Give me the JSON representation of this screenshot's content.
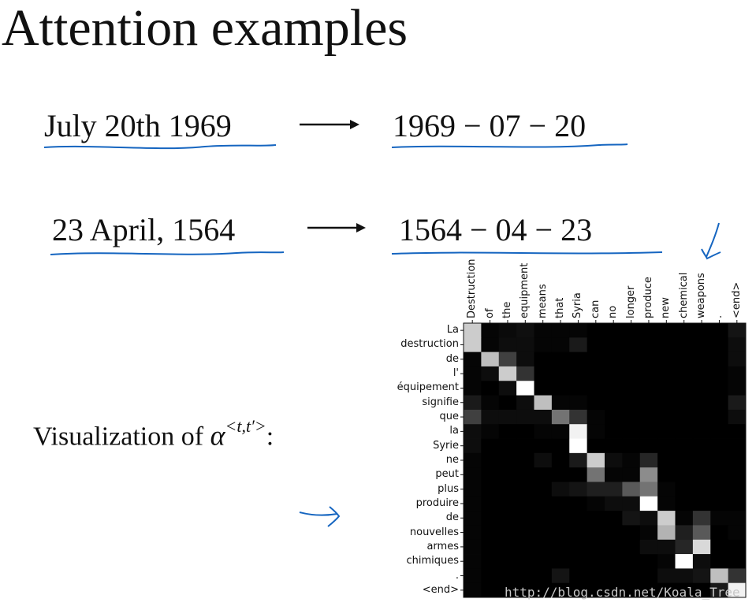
{
  "title": "Attention examples",
  "examples": [
    {
      "input": "July 20th 1969",
      "output": "1969 − 07 − 20"
    },
    {
      "input": "23 April, 1564",
      "output": "1564 − 04 − 23"
    }
  ],
  "visualization": {
    "prefix": "Visualization of ",
    "symbol": "α",
    "superscript": "<t,t′>",
    "suffix": ":"
  },
  "watermark": "http://blog.csdn.net/Koala_Tree",
  "colors": {
    "ink": "#111111",
    "pen": "#1565c0"
  },
  "chart_data": {
    "type": "heatmap",
    "x_labels": [
      "Destruction",
      "of",
      "the",
      "equipment",
      "means",
      "that",
      "Syria",
      "can",
      "no",
      "longer",
      "produce",
      "new",
      "chemical",
      "weapons",
      ".",
      "<end>"
    ],
    "y_labels": [
      "La",
      "destruction",
      "de",
      "l'",
      "équipement",
      "signifie",
      "que",
      "la",
      "Syrie",
      "ne",
      "peut",
      "plus",
      "produire",
      "de",
      "nouvelles",
      "armes",
      "chimiques",
      ".",
      "<end>"
    ],
    "colormap": "grayscale (black = 0, white = 1)",
    "values": [
      [
        0.8,
        0.02,
        0.04,
        0.06,
        0.02,
        0.02,
        0.02,
        0.0,
        0.0,
        0.0,
        0.0,
        0.0,
        0.0,
        0.0,
        0.0,
        0.08
      ],
      [
        0.8,
        0.02,
        0.05,
        0.05,
        0.02,
        0.02,
        0.1,
        0.0,
        0.0,
        0.0,
        0.0,
        0.0,
        0.0,
        0.0,
        0.0,
        0.05
      ],
      [
        0.02,
        0.75,
        0.25,
        0.05,
        0.0,
        0.0,
        0.0,
        0.0,
        0.0,
        0.0,
        0.0,
        0.0,
        0.0,
        0.0,
        0.0,
        0.05
      ],
      [
        0.02,
        0.05,
        0.8,
        0.2,
        0.0,
        0.0,
        0.0,
        0.0,
        0.0,
        0.0,
        0.0,
        0.0,
        0.0,
        0.0,
        0.0,
        0.02
      ],
      [
        0.02,
        0.0,
        0.05,
        1.0,
        0.0,
        0.0,
        0.0,
        0.0,
        0.0,
        0.0,
        0.0,
        0.0,
        0.0,
        0.0,
        0.0,
        0.02
      ],
      [
        0.1,
        0.02,
        0.0,
        0.05,
        0.75,
        0.02,
        0.02,
        0.0,
        0.0,
        0.0,
        0.0,
        0.0,
        0.0,
        0.0,
        0.0,
        0.1
      ],
      [
        0.25,
        0.05,
        0.05,
        0.05,
        0.05,
        0.45,
        0.2,
        0.02,
        0.0,
        0.0,
        0.0,
        0.0,
        0.0,
        0.0,
        0.0,
        0.05
      ],
      [
        0.05,
        0.02,
        0.0,
        0.0,
        0.02,
        0.02,
        0.95,
        0.02,
        0.0,
        0.0,
        0.0,
        0.0,
        0.0,
        0.0,
        0.0,
        0.0
      ],
      [
        0.05,
        0.0,
        0.0,
        0.0,
        0.0,
        0.0,
        1.0,
        0.0,
        0.0,
        0.0,
        0.0,
        0.0,
        0.0,
        0.0,
        0.0,
        0.0
      ],
      [
        0.02,
        0.0,
        0.0,
        0.0,
        0.05,
        0.0,
        0.1,
        0.8,
        0.05,
        0.02,
        0.15,
        0.0,
        0.0,
        0.0,
        0.0,
        0.0
      ],
      [
        0.02,
        0.0,
        0.0,
        0.0,
        0.0,
        0.0,
        0.0,
        0.45,
        0.02,
        0.02,
        0.55,
        0.0,
        0.0,
        0.0,
        0.0,
        0.0
      ],
      [
        0.02,
        0.0,
        0.0,
        0.0,
        0.0,
        0.05,
        0.08,
        0.12,
        0.12,
        0.35,
        0.45,
        0.02,
        0.0,
        0.0,
        0.0,
        0.0
      ],
      [
        0.02,
        0.0,
        0.0,
        0.0,
        0.0,
        0.0,
        0.0,
        0.02,
        0.05,
        0.05,
        1.0,
        0.02,
        0.0,
        0.0,
        0.0,
        0.0
      ],
      [
        0.02,
        0.0,
        0.0,
        0.0,
        0.0,
        0.0,
        0.0,
        0.0,
        0.0,
        0.08,
        0.05,
        0.8,
        0.02,
        0.2,
        0.02,
        0.02
      ],
      [
        0.02,
        0.0,
        0.0,
        0.0,
        0.0,
        0.0,
        0.0,
        0.0,
        0.0,
        0.0,
        0.02,
        0.7,
        0.12,
        0.35,
        0.0,
        0.02
      ],
      [
        0.02,
        0.0,
        0.0,
        0.0,
        0.0,
        0.0,
        0.0,
        0.0,
        0.0,
        0.0,
        0.05,
        0.05,
        0.15,
        0.85,
        0.0,
        0.0
      ],
      [
        0.02,
        0.0,
        0.0,
        0.0,
        0.0,
        0.0,
        0.0,
        0.0,
        0.0,
        0.0,
        0.0,
        0.02,
        1.0,
        0.05,
        0.0,
        0.0
      ],
      [
        0.02,
        0.0,
        0.0,
        0.0,
        0.0,
        0.08,
        0.0,
        0.0,
        0.0,
        0.0,
        0.0,
        0.05,
        0.05,
        0.08,
        0.75,
        0.2
      ],
      [
        0.02,
        0.0,
        0.0,
        0.0,
        0.0,
        0.0,
        0.0,
        0.0,
        0.0,
        0.0,
        0.0,
        0.0,
        0.0,
        0.0,
        0.1,
        0.95
      ]
    ]
  }
}
